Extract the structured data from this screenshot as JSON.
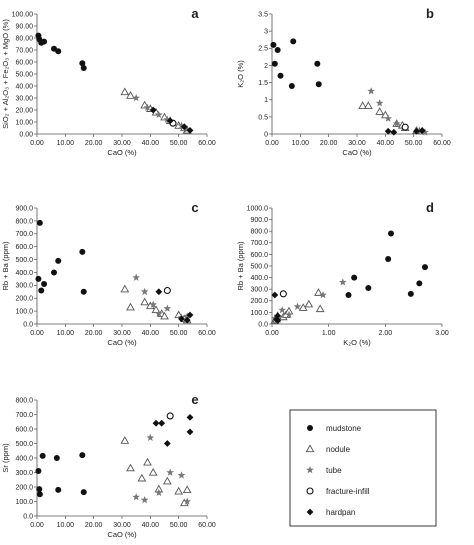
{
  "chart_data": [
    {
      "type": "scatter",
      "panel_label": "a",
      "xlabel": "CaO (%)",
      "ylabel": "SiO₂ + Al₂O₃ + Fe₂O₃ + MgO (%)",
      "xlim": [
        0,
        60
      ],
      "ylim": [
        0,
        100
      ],
      "xticks": [
        "0.00",
        "10.00",
        "20.00",
        "30.00",
        "40.00",
        "50.00",
        "60.00"
      ],
      "yticks": [
        "0.00",
        "10.00",
        "20.00",
        "30.00",
        "40.00",
        "50.00",
        "60.00",
        "70.00",
        "80.00",
        "90.00",
        "100.00"
      ],
      "series": [
        {
          "name": "mudstone",
          "marker": "circle",
          "points": [
            [
              0.5,
              82
            ],
            [
              0.8,
              79
            ],
            [
              1.5,
              76
            ],
            [
              2.5,
              77
            ],
            [
              6,
              71
            ],
            [
              7.5,
              69
            ],
            [
              16,
              59
            ],
            [
              16.5,
              55
            ]
          ]
        },
        {
          "name": "nodule",
          "marker": "triangle",
          "points": [
            [
              31,
              35
            ],
            [
              33,
              32
            ],
            [
              38,
              24
            ],
            [
              40,
              21
            ],
            [
              42,
              18
            ],
            [
              45,
              14
            ],
            [
              47,
              11
            ],
            [
              50,
              7
            ],
            [
              52,
              5
            ],
            [
              53,
              3
            ]
          ]
        },
        {
          "name": "tube",
          "marker": "star",
          "points": [
            [
              35,
              30
            ],
            [
              39,
              22
            ],
            [
              43,
              16
            ],
            [
              46,
              12
            ],
            [
              51,
              7
            ],
            [
              53,
              4
            ]
          ]
        },
        {
          "name": "fracture-infill",
          "marker": "open-circle",
          "points": [
            [
              48,
              9
            ]
          ]
        },
        {
          "name": "hardpan",
          "marker": "diamond",
          "points": [
            [
              41,
              20
            ],
            [
              47,
              11
            ],
            [
              52,
              6
            ],
            [
              54,
              3
            ]
          ]
        }
      ]
    },
    {
      "type": "scatter",
      "panel_label": "b",
      "xlabel": "CaO (%)",
      "ylabel": "K₂O (%)",
      "xlim": [
        0,
        60
      ],
      "ylim": [
        0,
        3.5
      ],
      "xticks": [
        "0.00",
        "10.00",
        "20.00",
        "30.00",
        "40.00",
        "50.00",
        "60.00"
      ],
      "yticks": [
        "0",
        "0.5",
        "1",
        "1.5",
        "2",
        "2.5",
        "3",
        "3.5"
      ],
      "series": [
        {
          "name": "mudstone",
          "marker": "circle",
          "points": [
            [
              0.5,
              2.6
            ],
            [
              1,
              2.05
            ],
            [
              2,
              2.45
            ],
            [
              3,
              1.7
            ],
            [
              7,
              1.4
            ],
            [
              7.5,
              2.7
            ],
            [
              16,
              2.05
            ],
            [
              16.5,
              1.45
            ]
          ]
        },
        {
          "name": "nodule",
          "marker": "triangle",
          "points": [
            [
              32,
              0.82
            ],
            [
              34,
              0.82
            ],
            [
              38,
              0.65
            ],
            [
              40,
              0.55
            ],
            [
              44,
              0.3
            ],
            [
              46,
              0.25
            ],
            [
              47,
              0.18
            ],
            [
              51,
              0.1
            ],
            [
              53,
              0.08
            ]
          ]
        },
        {
          "name": "tube",
          "marker": "star",
          "points": [
            [
              35,
              1.25
            ],
            [
              38,
              0.9
            ],
            [
              41,
              0.45
            ],
            [
              44,
              0.3
            ],
            [
              47,
              0.18
            ],
            [
              52,
              0.1
            ],
            [
              54,
              0.05
            ]
          ]
        },
        {
          "name": "fracture-infill",
          "marker": "open-circle",
          "points": [
            [
              47,
              0.2
            ]
          ]
        },
        {
          "name": "hardpan",
          "marker": "diamond",
          "points": [
            [
              41,
              0.08
            ],
            [
              43,
              0.05
            ],
            [
              51,
              0.08
            ],
            [
              53,
              0.1
            ]
          ]
        }
      ]
    },
    {
      "type": "scatter",
      "panel_label": "c",
      "xlabel": "CaO (%)",
      "ylabel": "Rb + Ba (ppm)",
      "xlim": [
        0,
        60
      ],
      "ylim": [
        0,
        900
      ],
      "xticks": [
        "0.00",
        "10.00",
        "20.00",
        "30.00",
        "40.00",
        "50.00",
        "60.00"
      ],
      "yticks": [
        "0.0",
        "100.0",
        "200.0",
        "300.0",
        "400.0",
        "500.0",
        "600.0",
        "700.0",
        "800.0",
        "900.0"
      ],
      "series": [
        {
          "name": "mudstone",
          "marker": "circle",
          "points": [
            [
              0.5,
              350
            ],
            [
              1,
              785
            ],
            [
              1.5,
              260
            ],
            [
              2.5,
              310
            ],
            [
              6,
              400
            ],
            [
              7.5,
              490
            ],
            [
              16,
              560
            ],
            [
              16.5,
              250
            ]
          ]
        },
        {
          "name": "nodule",
          "marker": "triangle",
          "points": [
            [
              31,
              270
            ],
            [
              33,
              130
            ],
            [
              38,
              170
            ],
            [
              40,
              140
            ],
            [
              42,
              110
            ],
            [
              44,
              80
            ],
            [
              45,
              60
            ],
            [
              50,
              70
            ],
            [
              52,
              40
            ],
            [
              53,
              30
            ]
          ]
        },
        {
          "name": "tube",
          "marker": "star",
          "points": [
            [
              35,
              360
            ],
            [
              38,
              250
            ],
            [
              41,
              150
            ],
            [
              43,
              80
            ],
            [
              46,
              120
            ],
            [
              51,
              50
            ],
            [
              53,
              60
            ]
          ]
        },
        {
          "name": "fracture-infill",
          "marker": "open-circle",
          "points": [
            [
              46,
              260
            ]
          ]
        },
        {
          "name": "hardpan",
          "marker": "diamond",
          "points": [
            [
              43,
              250
            ],
            [
              51,
              40
            ],
            [
              53,
              30
            ],
            [
              54,
              70
            ]
          ]
        }
      ]
    },
    {
      "type": "scatter",
      "panel_label": "d",
      "xlabel": "K₂O (%)",
      "ylabel": "Rb + Ba (ppm)",
      "xlim": [
        0,
        3
      ],
      "ylim": [
        0,
        1000
      ],
      "xticks": [
        "0.00",
        "1.00",
        "2.00",
        "3.00"
      ],
      "yticks": [
        "0.0",
        "100.0",
        "200.0",
        "300.0",
        "400.0",
        "500.0",
        "600.0",
        "700.0",
        "800.0",
        "900.0",
        "1000.0"
      ],
      "series": [
        {
          "name": "mudstone",
          "marker": "circle",
          "points": [
            [
              1.45,
              400
            ],
            [
              1.7,
              310
            ],
            [
              2.05,
              560
            ],
            [
              2.1,
              780
            ],
            [
              2.45,
              260
            ],
            [
              2.6,
              350
            ],
            [
              2.7,
              490
            ],
            [
              1.35,
              250
            ]
          ]
        },
        {
          "name": "nodule",
          "marker": "triangle",
          "points": [
            [
              0.05,
              30
            ],
            [
              0.08,
              40
            ],
            [
              0.1,
              70
            ],
            [
              0.2,
              60
            ],
            [
              0.25,
              80
            ],
            [
              0.3,
              110
            ],
            [
              0.55,
              140
            ],
            [
              0.65,
              170
            ],
            [
              0.82,
              270
            ],
            [
              0.85,
              130
            ]
          ]
        },
        {
          "name": "tube",
          "marker": "star",
          "points": [
            [
              0.05,
              50
            ],
            [
              0.1,
              60
            ],
            [
              0.3,
              80
            ],
            [
              0.45,
              150
            ],
            [
              0.9,
              250
            ],
            [
              1.25,
              360
            ],
            [
              0.18,
              120
            ]
          ]
        },
        {
          "name": "fracture-infill",
          "marker": "open-circle",
          "points": [
            [
              0.2,
              260
            ]
          ]
        },
        {
          "name": "hardpan",
          "marker": "diamond",
          "points": [
            [
              0.05,
              250
            ],
            [
              0.08,
              40
            ],
            [
              0.1,
              30
            ],
            [
              0.1,
              70
            ]
          ]
        }
      ]
    },
    {
      "type": "scatter",
      "panel_label": "e",
      "xlabel": "CaO (%)",
      "ylabel": "Sr (ppm)",
      "xlim": [
        0,
        60
      ],
      "ylim": [
        0,
        800
      ],
      "xticks": [
        "0.00",
        "10.00",
        "20.00",
        "30.00",
        "40.00",
        "50.00",
        "60.00"
      ],
      "yticks": [
        "0.0",
        "100.0",
        "200.0",
        "300.0",
        "400.0",
        "500.0",
        "600.0",
        "700.0",
        "800.0"
      ],
      "series": [
        {
          "name": "mudstone",
          "marker": "circle",
          "points": [
            [
              0.5,
              310
            ],
            [
              0.8,
              185
            ],
            [
              1,
              150
            ],
            [
              2,
              415
            ],
            [
              7,
              400
            ],
            [
              7.5,
              180
            ],
            [
              16,
              420
            ],
            [
              16.5,
              165
            ]
          ]
        },
        {
          "name": "nodule",
          "marker": "triangle",
          "points": [
            [
              31,
              520
            ],
            [
              33,
              330
            ],
            [
              37,
              260
            ],
            [
              39,
              370
            ],
            [
              41,
              300
            ],
            [
              43,
              185
            ],
            [
              46,
              240
            ],
            [
              50,
              170
            ],
            [
              52,
              90
            ],
            [
              53,
              180
            ]
          ]
        },
        {
          "name": "tube",
          "marker": "star",
          "points": [
            [
              35,
              130
            ],
            [
              38,
              110
            ],
            [
              40,
              540
            ],
            [
              43,
              160
            ],
            [
              47,
              300
            ],
            [
              51,
              280
            ],
            [
              53,
              100
            ]
          ]
        },
        {
          "name": "fracture-infill",
          "marker": "open-circle",
          "points": [
            [
              47,
              690
            ]
          ]
        },
        {
          "name": "hardpan",
          "marker": "diamond",
          "points": [
            [
              42,
              640
            ],
            [
              44,
              640
            ],
            [
              46,
              500
            ],
            [
              54,
              580
            ],
            [
              54,
              680
            ]
          ]
        }
      ]
    }
  ],
  "legend": {
    "items": [
      {
        "name": "mudstone",
        "marker": "circle"
      },
      {
        "name": "nodule",
        "marker": "triangle"
      },
      {
        "name": "tube",
        "marker": "star"
      },
      {
        "name": "fracture-infill",
        "marker": "open-circle"
      },
      {
        "name": "hardpan",
        "marker": "diamond"
      }
    ]
  },
  "colors": {
    "mudstone": "#111111",
    "nodule": "#555555",
    "tube": "#777777",
    "fracture-infill": "#111111",
    "hardpan": "#111111",
    "axis": "#555555"
  }
}
